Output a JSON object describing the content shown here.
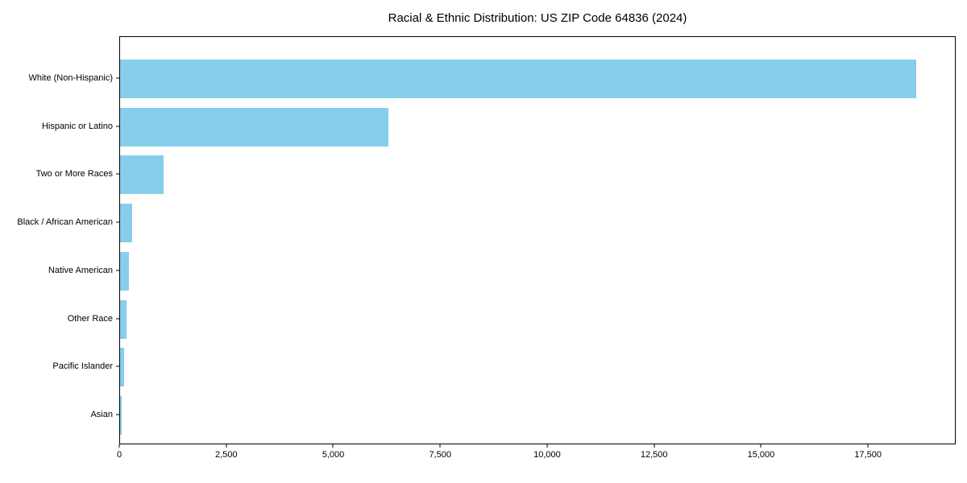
{
  "title": "Racial & Ethnic Distribution: US ZIP Code 64836 (2024)",
  "colors": {
    "bar": "#87CEEB",
    "axis": "#000000",
    "background": "#ffffff",
    "text": "#000000"
  },
  "chart_data": {
    "type": "bar",
    "orientation": "horizontal",
    "title": "Racial & Ethnic Distribution: US ZIP Code 64836 (2024)",
    "categories": [
      "White (Non-Hispanic)",
      "Hispanic or Latino",
      "Two or More Races",
      "Black / African American",
      "Native American",
      "Other Race",
      "Pacific Islander",
      "Asian"
    ],
    "values": [
      18600,
      6280,
      1010,
      275,
      215,
      160,
      85,
      45
    ],
    "bar_color": "#87CEEB",
    "xlabel": "",
    "ylabel": "",
    "xlim": [
      0,
      19550
    ],
    "x_ticks": [
      {
        "value": 0,
        "label": "0"
      },
      {
        "value": 2500,
        "label": "2,500"
      },
      {
        "value": 5000,
        "label": "5,000"
      },
      {
        "value": 7500,
        "label": "7,500"
      },
      {
        "value": 10000,
        "label": "10,000"
      },
      {
        "value": 12500,
        "label": "12,500"
      },
      {
        "value": 15000,
        "label": "15,000"
      },
      {
        "value": 17500,
        "label": "17,500"
      }
    ],
    "grid": false,
    "legend": null
  }
}
